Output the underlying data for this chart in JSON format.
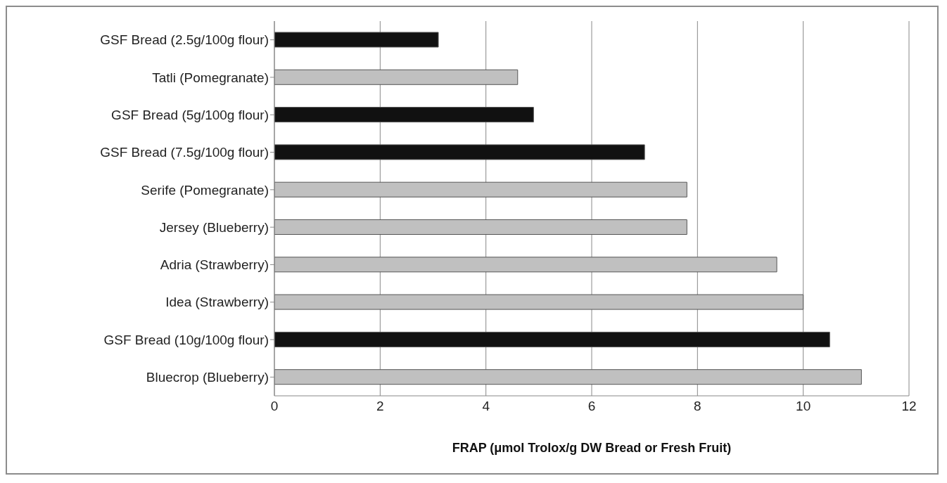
{
  "chart_data": {
    "type": "bar",
    "orientation": "horizontal",
    "xlabel": "FRAP (μmol Trolox/g DW Bread or Fresh Fruit)",
    "categories": [
      "GSF Bread  (2.5g/100g flour)",
      "Tatli (Pomegranate)",
      "GSF Bread  (5g/100g flour)",
      "GSF Bread  (7.5g/100g flour)",
      "Serife (Pomegranate)",
      "Jersey (Blueberry)",
      "Adria (Strawberry)",
      "Idea (Strawberry)",
      "GSF Bread  (10g/100g flour)",
      "Bluecrop (Blueberry)"
    ],
    "values": [
      3.1,
      4.6,
      4.9,
      7.0,
      7.8,
      7.8,
      9.5,
      10.0,
      10.5,
      11.1
    ],
    "colors": [
      "#111111",
      "#c0c0c0",
      "#111111",
      "#111111",
      "#c0c0c0",
      "#c0c0c0",
      "#c0c0c0",
      "#c0c0c0",
      "#111111",
      "#c0c0c0"
    ],
    "xlim": [
      0,
      12
    ],
    "xticks": [
      0,
      2,
      4,
      6,
      8,
      10,
      12
    ],
    "grid": "x",
    "legend": false
  }
}
